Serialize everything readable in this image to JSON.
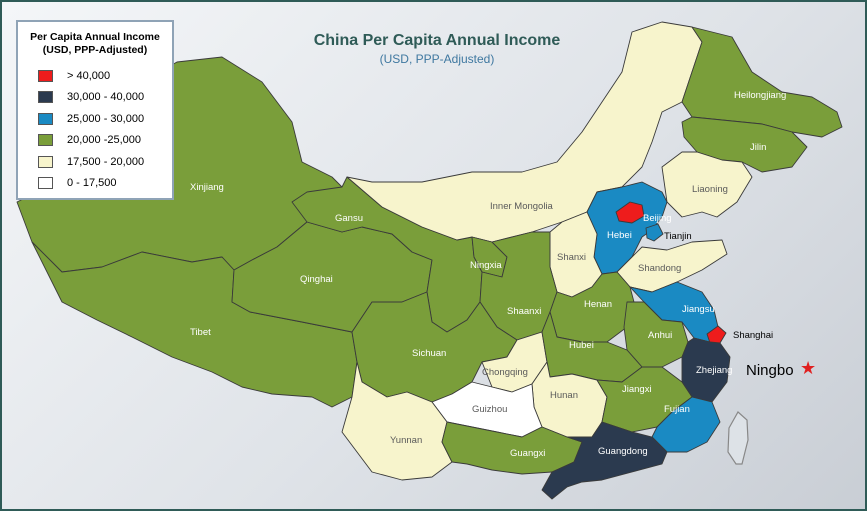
{
  "title": "China Per Capita Annual Income",
  "subtitle": "(USD, PPP-Adjusted)",
  "legend": {
    "title_line1": "Per Capita Annual Income",
    "title_line2": "(USD, PPP-Adjusted)",
    "items": [
      {
        "label": "> 40,000",
        "color": "#ee1c1c"
      },
      {
        "label": "30,000 - 40,000",
        "color": "#2b3a4f"
      },
      {
        "label": "25,000 - 30,000",
        "color": "#1a8ac3"
      },
      {
        "label": "20,000  -25,000",
        "color": "#7a9e3a"
      },
      {
        "label": "17,500 - 20,000",
        "color": "#f7f4cc"
      },
      {
        "label": "0 - 17,500",
        "color": "#ffffff"
      }
    ]
  },
  "provinces": [
    {
      "id": "xinjiang",
      "name": "Xinjiang",
      "bracket": "20,000  -25,000"
    },
    {
      "id": "tibet",
      "name": "Tibet",
      "bracket": "20,000  -25,000"
    },
    {
      "id": "qinghai",
      "name": "Qinghai",
      "bracket": "20,000  -25,000"
    },
    {
      "id": "gansu",
      "name": "Gansu",
      "bracket": "20,000  -25,000"
    },
    {
      "id": "inner-mongolia",
      "name": "Inner Mongolia",
      "bracket": "17,500 - 20,000"
    },
    {
      "id": "heilongjiang",
      "name": "Heilongjiang",
      "bracket": "20,000  -25,000"
    },
    {
      "id": "jilin",
      "name": "Jilin",
      "bracket": "20,000  -25,000"
    },
    {
      "id": "liaoning",
      "name": "Liaoning",
      "bracket": "17,500 - 20,000"
    },
    {
      "id": "hebei",
      "name": "Hebei",
      "bracket": "25,000 - 30,000"
    },
    {
      "id": "beijing",
      "name": "Beijing",
      "bracket": "> 40,000"
    },
    {
      "id": "tianjin",
      "name": "Tianjin",
      "bracket": "25,000 - 30,000"
    },
    {
      "id": "shanxi",
      "name": "Shanxi",
      "bracket": "17,500 - 20,000"
    },
    {
      "id": "shandong",
      "name": "Shandong",
      "bracket": "17,500 - 20,000"
    },
    {
      "id": "ningxia",
      "name": "Ningxia",
      "bracket": "20,000  -25,000"
    },
    {
      "id": "shaanxi",
      "name": "Shaanxi",
      "bracket": "20,000  -25,000"
    },
    {
      "id": "henan",
      "name": "Henan",
      "bracket": "20,000  -25,000"
    },
    {
      "id": "jiangsu",
      "name": "Jiangsu",
      "bracket": "25,000 - 30,000"
    },
    {
      "id": "shanghai",
      "name": "Shanghai",
      "bracket": "> 40,000"
    },
    {
      "id": "anhui",
      "name": "Anhui",
      "bracket": "20,000  -25,000"
    },
    {
      "id": "sichuan",
      "name": "Sichuan",
      "bracket": "20,000  -25,000"
    },
    {
      "id": "chongqing",
      "name": "Chongqing",
      "bracket": "17,500 - 20,000"
    },
    {
      "id": "hubei",
      "name": "Hubei",
      "bracket": "20,000  -25,000"
    },
    {
      "id": "zhejiang",
      "name": "Zhejiang",
      "bracket": "30,000 - 40,000"
    },
    {
      "id": "hunan",
      "name": "Hunan",
      "bracket": "17,500 - 20,000"
    },
    {
      "id": "jiangxi",
      "name": "Jiangxi",
      "bracket": "20,000  -25,000"
    },
    {
      "id": "fujian",
      "name": "Fujian",
      "bracket": "25,000 - 30,000"
    },
    {
      "id": "guizhou",
      "name": "Guizhou",
      "bracket": "0 - 17,500"
    },
    {
      "id": "yunnan",
      "name": "Yunnan",
      "bracket": "17,500 - 20,000"
    },
    {
      "id": "guangxi",
      "name": "Guangxi",
      "bracket": "20,000  -25,000"
    },
    {
      "id": "guangdong",
      "name": "Guangdong",
      "bracket": "30,000 - 40,000"
    }
  ],
  "annotation": {
    "label": "Ningbo",
    "marker": "star-icon",
    "color": "#e02020"
  }
}
